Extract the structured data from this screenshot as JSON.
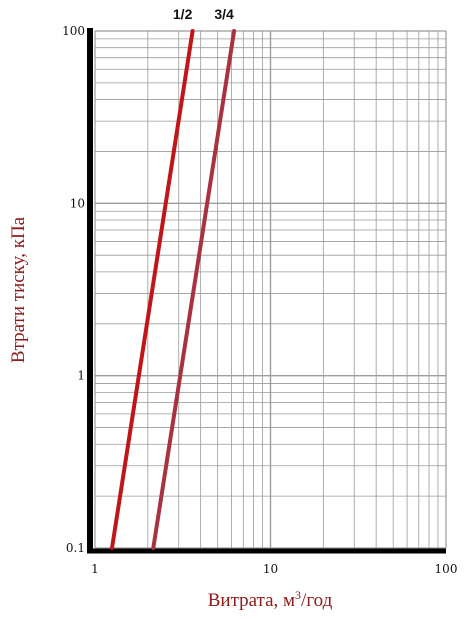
{
  "chart_data": {
    "type": "line",
    "x_scale": "log",
    "y_scale": "log",
    "xlim": [
      1,
      100
    ],
    "ylim": [
      0.1,
      100
    ],
    "xlabel": "Витрата, м³/год",
    "ylabel": "Втрати тиску, кПа",
    "x_ticks": [
      "1",
      "10",
      "100"
    ],
    "y_ticks": [
      "0.1",
      "1",
      "10",
      "100"
    ],
    "grid": true,
    "legend": "none",
    "series": [
      {
        "name": "1/2",
        "x": [
          1.25,
          3.6
        ],
        "y": [
          0.1,
          100
        ],
        "color": "#c0161b"
      },
      {
        "name": "3/4",
        "x": [
          2.15,
          6.2
        ],
        "y": [
          0.1,
          100
        ],
        "color": "#a8323f"
      }
    ]
  },
  "colors": {
    "grid": "#9a9a9a",
    "axis": "#000000",
    "axis_title": "#8b1a1a"
  }
}
